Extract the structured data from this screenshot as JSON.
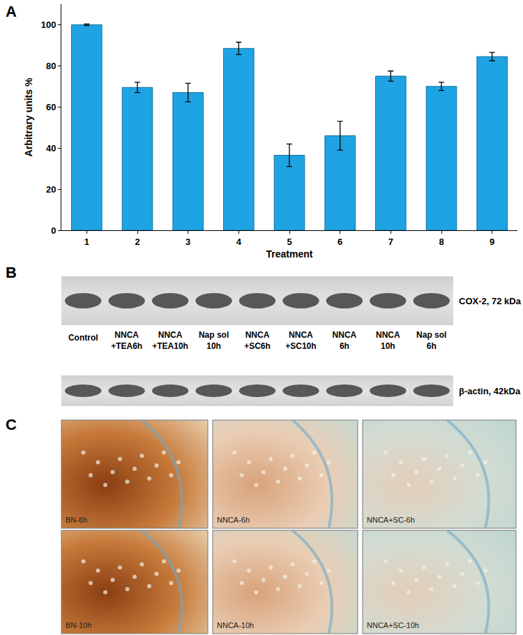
{
  "panel_labels": [
    "A",
    "B",
    "C"
  ],
  "chart_data": {
    "type": "bar",
    "x_label": "Treatment",
    "y_label": "Arbitrary units %",
    "categories": [
      "1",
      "2",
      "3",
      "4",
      "5",
      "6",
      "7",
      "8",
      "9"
    ],
    "values": [
      100,
      69.5,
      67,
      88.5,
      36.5,
      46,
      75,
      70,
      84.5
    ],
    "errors": [
      0.4,
      2.5,
      4.5,
      3,
      5.5,
      7,
      2.5,
      2,
      2
    ],
    "color": "#1ea3e3",
    "ylim": [
      0,
      110
    ],
    "yticks": [
      0,
      20,
      40,
      60,
      80,
      100
    ],
    "grid": false
  },
  "blot": {
    "lanes": [
      [
        "Control"
      ],
      [
        "NNCA",
        "+TEA6h"
      ],
      [
        "NNCA",
        "+TEA10h"
      ],
      [
        "Nap sol",
        "10h"
      ],
      [
        "NNCA",
        "+SC6h"
      ],
      [
        "NNCA",
        "+SC10h"
      ],
      [
        "NNCA",
        "6h"
      ],
      [
        "NNCA",
        "10h"
      ],
      [
        "Nap sol",
        "6h"
      ]
    ],
    "rows": [
      "COX-2, 72 kDa",
      "β-actin, 42kDa"
    ]
  },
  "histology": {
    "images": [
      "BN-6h",
      "NNCA-6h",
      "NNCA+SC-6h",
      "BN-10h",
      "NNCA-10h",
      "NNCA+SC-10h"
    ]
  }
}
